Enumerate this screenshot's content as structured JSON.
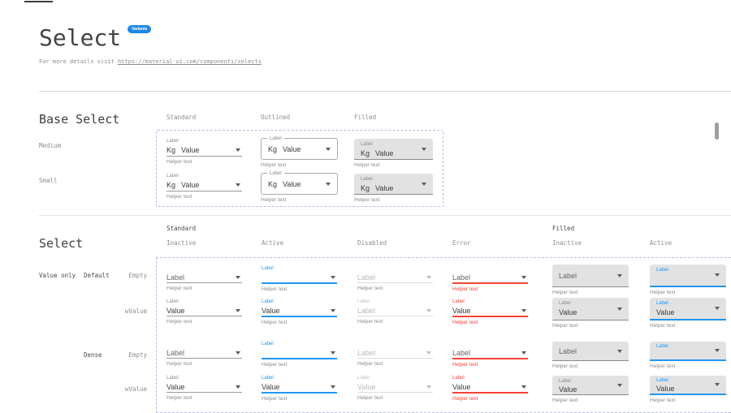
{
  "header": {
    "title": "Select",
    "badge": "Variants",
    "subtitle_prefix": "For more details visit ",
    "subtitle_link": "https://material-ui.com/components/selects"
  },
  "colors": {
    "accent_blue": "#2196f3",
    "badge_blue": "#1e88e5",
    "error_red": "#f44336",
    "filled_gray": "#e2e2e2",
    "text_dark": "#3a3a3a",
    "text_gray": "#8b8b8b",
    "disabled_gray": "#b9b9b9",
    "frame_dashed": "#b4bce4"
  },
  "base_section": {
    "heading": "Base Select",
    "column_headers": [
      "Standard",
      "Outlined",
      "Filled"
    ],
    "rows": [
      {
        "label": "Medium",
        "cells": [
          {
            "variant": "standard",
            "state": "inactive",
            "tiny": "Label",
            "adorn": "Kg",
            "value": "Value",
            "value_role": "value",
            "helper": "Helper text"
          },
          {
            "variant": "outlined",
            "state": "inactive",
            "tiny": "Label",
            "adorn": "Kg",
            "value": "Value",
            "value_role": "value",
            "helper": "Helper text"
          },
          {
            "variant": "filled",
            "state": "inactive",
            "tiny": "Label",
            "adorn": "Kg",
            "value": "Value",
            "value_role": "value",
            "helper": "Helper text"
          }
        ]
      },
      {
        "label": "Small",
        "cells": [
          {
            "variant": "standard",
            "state": "inactive",
            "tiny": "Label",
            "adorn": "Kg",
            "value": "Value",
            "value_role": "value",
            "helper": "Helper text"
          },
          {
            "variant": "outlined",
            "state": "inactive",
            "tiny": "Label",
            "adorn": "Kg",
            "value": "Value",
            "value_role": "value",
            "helper": "Helper text"
          },
          {
            "variant": "filled",
            "state": "inactive",
            "tiny": "Label",
            "adorn": "Kg",
            "value": "Value",
            "value_role": "value",
            "helper": "Helper text"
          }
        ]
      }
    ]
  },
  "matrix_section": {
    "heading": "Select",
    "group_headers": [
      "Standard",
      "Filled"
    ],
    "column_headers": [
      "Inactive",
      "Active",
      "Disabled",
      "Error",
      "Inactive",
      "Active"
    ],
    "row_group_label": "Value only",
    "rows": [
      {
        "size": "Default",
        "label": "Empty",
        "cells": [
          {
            "variant": "standard",
            "state": "inactive",
            "tiny": "",
            "value": "Label",
            "value_role": "placeholder",
            "helper": "Helper text"
          },
          {
            "variant": "standard",
            "state": "active",
            "tiny": "Label",
            "value": "",
            "value_role": "value",
            "helper": "Helper text"
          },
          {
            "variant": "standard",
            "state": "disabled",
            "tiny": "",
            "value": "Label",
            "value_role": "placeholder",
            "helper": "Helper text"
          },
          {
            "variant": "standard",
            "state": "error",
            "tiny": "",
            "value": "Label",
            "value_role": "placeholder",
            "helper": "Helper text"
          },
          {
            "variant": "filled",
            "state": "inactive",
            "tiny": "",
            "value": "Label",
            "value_role": "placeholder",
            "helper": "Helper text"
          },
          {
            "variant": "filled",
            "state": "active",
            "tiny": "Label",
            "value": "",
            "value_role": "value",
            "helper": "Helper text"
          }
        ]
      },
      {
        "size": "Default",
        "label": "wValue",
        "cells": [
          {
            "variant": "standard",
            "state": "inactive",
            "tiny": "Label",
            "value": "Value",
            "value_role": "value",
            "helper": "Helper text"
          },
          {
            "variant": "standard",
            "state": "active",
            "tiny": "Label",
            "value": "Value",
            "value_role": "value",
            "helper": "Helper text"
          },
          {
            "variant": "standard",
            "state": "disabled",
            "tiny": "Label",
            "value": "Label",
            "value_role": "value",
            "helper": "Helper text"
          },
          {
            "variant": "standard",
            "state": "error",
            "tiny": "Label",
            "value": "Value",
            "value_role": "value",
            "helper": "Helper text"
          },
          {
            "variant": "filled",
            "state": "inactive",
            "tiny": "Label",
            "value": "Value",
            "value_role": "value",
            "helper": "Helper text"
          },
          {
            "variant": "filled",
            "state": "active",
            "tiny": "Label",
            "value": "Value",
            "value_role": "value",
            "helper": "Helper text"
          }
        ]
      },
      {
        "size": "Dense",
        "label": "Empty",
        "cells": [
          {
            "variant": "standard",
            "state": "inactive",
            "tiny": "",
            "value": "Label",
            "value_role": "placeholder",
            "helper": "Helper text"
          },
          {
            "variant": "standard",
            "state": "active",
            "tiny": "Label",
            "value": "",
            "value_role": "value",
            "helper": "Helper text"
          },
          {
            "variant": "standard",
            "state": "disabled",
            "tiny": "",
            "value": "Label",
            "value_role": "placeholder",
            "helper": "Helper text"
          },
          {
            "variant": "standard",
            "state": "error",
            "tiny": "",
            "value": "Label",
            "value_role": "placeholder",
            "helper": "Helper text"
          },
          {
            "variant": "filled",
            "state": "inactive",
            "tiny": "",
            "value": "Label",
            "value_role": "placeholder",
            "helper": "Helper text"
          },
          {
            "variant": "filled",
            "state": "active",
            "tiny": "Label",
            "value": "",
            "value_role": "value",
            "helper": "Helper text"
          }
        ]
      },
      {
        "size": "Dense",
        "label": "wValue",
        "cells": [
          {
            "variant": "standard",
            "state": "inactive",
            "tiny": "Label",
            "value": "Value",
            "value_role": "value",
            "helper": "Helper text"
          },
          {
            "variant": "standard",
            "state": "active",
            "tiny": "Label",
            "value": "Value",
            "value_role": "value",
            "helper": "Helper text"
          },
          {
            "variant": "standard",
            "state": "disabled",
            "tiny": "Label",
            "value": "Value",
            "value_role": "value",
            "helper": "Helper text"
          },
          {
            "variant": "standard",
            "state": "error",
            "tiny": "Label",
            "value": "Value",
            "value_role": "value",
            "helper": "Helper text"
          },
          {
            "variant": "filled",
            "state": "inactive",
            "tiny": "Label",
            "value": "Value",
            "value_role": "value",
            "helper": "Helper text"
          },
          {
            "variant": "filled",
            "state": "active",
            "tiny": "Label",
            "value": "Value",
            "value_role": "value",
            "helper": "Helper text"
          }
        ]
      }
    ]
  }
}
